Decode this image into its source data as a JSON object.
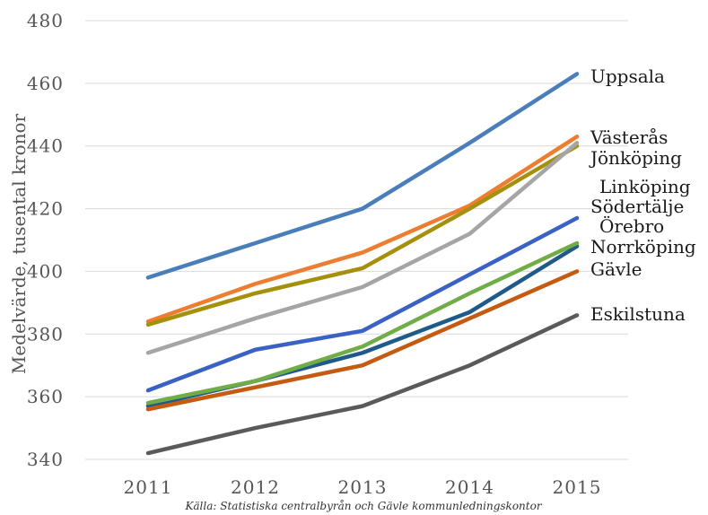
{
  "chart_data": {
    "type": "line",
    "x": [
      "2011",
      "2012",
      "2013",
      "2014",
      "2015"
    ],
    "ylabel": "Medelvärde, tusental kronor",
    "ylim": [
      340,
      480
    ],
    "yticks": [
      340,
      360,
      380,
      400,
      420,
      440,
      460,
      480
    ],
    "grid": true,
    "legend": "end-of-line labels",
    "source": "Källa: Statistiska centralbyrån och Gävle kommunledningskontor",
    "series": [
      {
        "name": "Uppsala",
        "color": "#4a7ebb",
        "values": [
          398,
          409,
          420,
          441,
          463
        ]
      },
      {
        "name": "Västerås",
        "color": "#ed7d31",
        "values": [
          384,
          396,
          406,
          421,
          443
        ]
      },
      {
        "name": "Jönköping",
        "color": "#a5900b",
        "values": [
          383,
          393,
          401,
          420,
          440
        ]
      },
      {
        "name": "Linköping",
        "color": "#a5a5a5",
        "values": [
          374,
          385,
          395,
          412,
          441
        ]
      },
      {
        "name": "Södertälje",
        "color": "#3a62c4",
        "values": [
          362,
          375,
          381,
          399,
          417
        ]
      },
      {
        "name": "Örebro",
        "color": "#1f5a8a",
        "values": [
          357,
          365,
          374,
          387,
          408
        ]
      },
      {
        "name": "Norrköping",
        "color": "#70ad47",
        "values": [
          358,
          365,
          376,
          393,
          409
        ]
      },
      {
        "name": "Gävle",
        "color": "#c55a11",
        "values": [
          356,
          363,
          370,
          385,
          400
        ]
      },
      {
        "name": "Eskilstuna",
        "color": "#5a5a5a",
        "values": [
          342,
          350,
          357,
          370,
          386
        ]
      }
    ]
  }
}
